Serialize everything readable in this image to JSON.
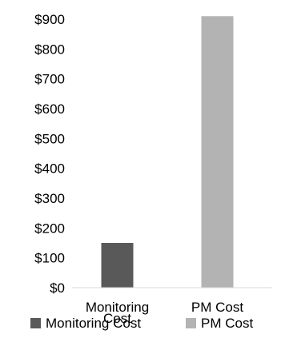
{
  "chart_data": {
    "type": "bar",
    "categories": [
      "Monitoring Cost",
      "PM Cost"
    ],
    "values": [
      150,
      910
    ],
    "colors": [
      "#595959",
      "#b3b3b3"
    ],
    "title": "",
    "xlabel": "",
    "ylabel": "",
    "ylim": [
      0,
      900
    ],
    "yticks": [
      "$0",
      "$100",
      "$200",
      "$300",
      "$400",
      "$500",
      "$600",
      "$700",
      "$800",
      "$900"
    ],
    "grid": false,
    "legend": {
      "position": "bottom",
      "entries": [
        "Monitoring Cost",
        "PM Cost"
      ]
    }
  }
}
